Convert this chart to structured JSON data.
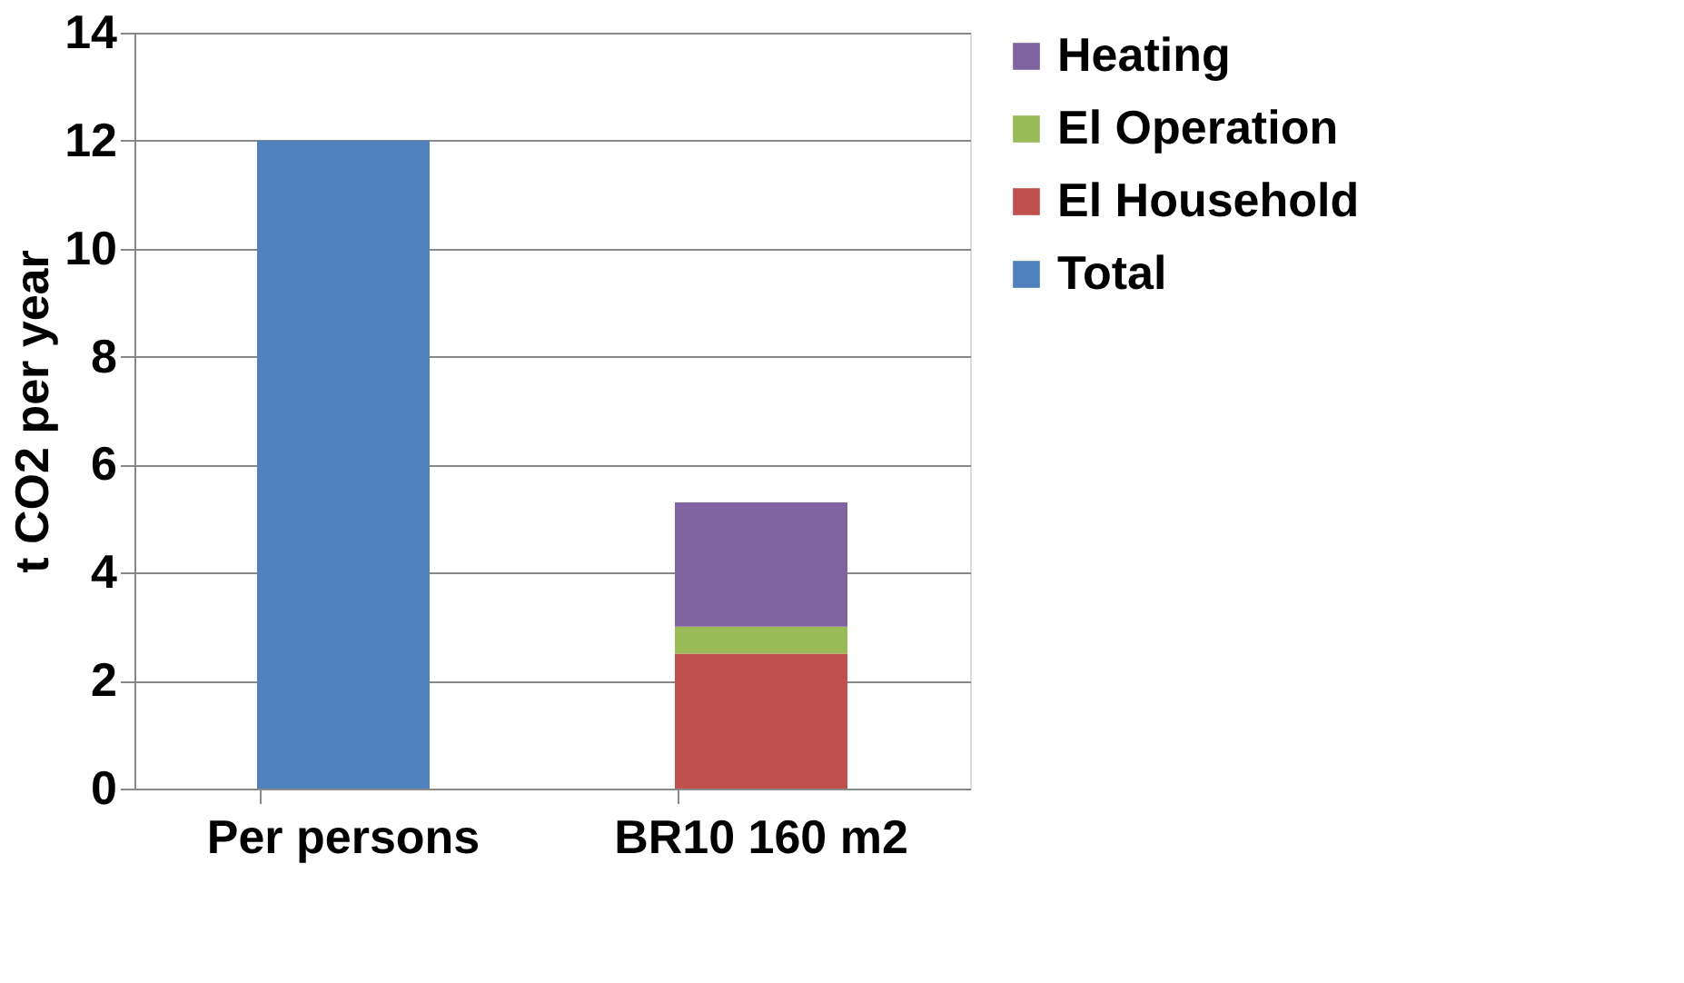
{
  "chart_data": {
    "type": "bar",
    "stacked": true,
    "ylabel": "t CO2 per year",
    "categories": [
      "Per persons",
      "BR10 160 m2"
    ],
    "series": [
      {
        "name": "Total",
        "color": "#4f81bd",
        "values": [
          12,
          null
        ]
      },
      {
        "name": "El Household",
        "color": "#c0504d",
        "values": [
          null,
          2.5
        ]
      },
      {
        "name": "El Operation",
        "color": "#9bbb59",
        "values": [
          null,
          0.5
        ]
      },
      {
        "name": "Heating",
        "color": "#8064a2",
        "values": [
          null,
          2.3
        ]
      }
    ],
    "ylim": [
      0,
      14
    ],
    "yticks": [
      0,
      2,
      4,
      6,
      8,
      10,
      12,
      14
    ],
    "grid": "y",
    "legend": "right"
  }
}
